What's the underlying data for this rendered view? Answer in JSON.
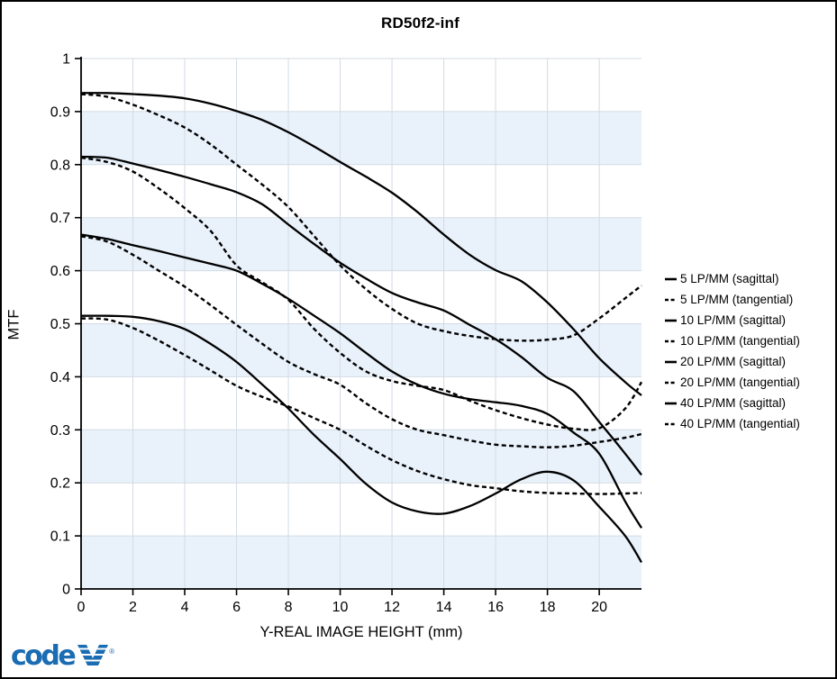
{
  "chart_data": {
    "type": "line",
    "title": "RD50f2-inf",
    "xlabel": "Y-REAL IMAGE HEIGHT (mm)",
    "ylabel": "MTF",
    "xlim": [
      0,
      21.63
    ],
    "ylim": [
      0,
      1
    ],
    "x_ticks": [
      0,
      2,
      4,
      6,
      8,
      10,
      12,
      14,
      16,
      18,
      20
    ],
    "y_ticks": [
      0,
      0.1,
      0.2,
      0.3,
      0.4,
      0.5,
      0.6,
      0.7,
      0.8,
      0.9,
      1
    ],
    "y_tick_labels": [
      "0",
      "0.1",
      "0.2",
      "0.3",
      "0.4",
      "0.5",
      "0.6",
      "0.7",
      "0.8",
      "0.9",
      "1"
    ],
    "grid": true,
    "legend_position": "right",
    "band_color": "#e9f1fb",
    "grid_color": "#d3dbe4",
    "line_color": "#000000",
    "x": [
      0,
      1,
      2,
      3,
      4,
      5,
      6,
      7,
      8,
      9,
      10,
      11,
      12,
      13,
      14,
      15,
      16,
      17,
      18,
      19,
      20,
      21,
      21.63
    ],
    "series": [
      {
        "name": "5 LP/MM (sagittal)",
        "line": "solid",
        "values": [
          0.935,
          0.935,
          0.933,
          0.93,
          0.925,
          0.915,
          0.901,
          0.884,
          0.861,
          0.834,
          0.805,
          0.777,
          0.747,
          0.71,
          0.668,
          0.63,
          0.601,
          0.58,
          0.54,
          0.49,
          0.435,
          0.39,
          0.365
        ]
      },
      {
        "name": "5 LP/MM (tangential)",
        "line": "dashed",
        "values": [
          0.933,
          0.928,
          0.913,
          0.893,
          0.87,
          0.838,
          0.8,
          0.762,
          0.72,
          0.665,
          0.61,
          0.565,
          0.528,
          0.5,
          0.486,
          0.477,
          0.471,
          0.468,
          0.47,
          0.478,
          0.51,
          0.548,
          0.572
        ]
      },
      {
        "name": "10 LP/MM (sagittal)",
        "line": "solid",
        "values": [
          0.815,
          0.813,
          0.802,
          0.79,
          0.777,
          0.763,
          0.748,
          0.725,
          0.687,
          0.65,
          0.615,
          0.585,
          0.558,
          0.54,
          0.525,
          0.498,
          0.471,
          0.437,
          0.398,
          0.373,
          0.315,
          0.255,
          0.215
        ]
      },
      {
        "name": "10 LP/MM (tangential)",
        "line": "dashed",
        "values": [
          0.813,
          0.805,
          0.787,
          0.755,
          0.718,
          0.675,
          0.61,
          0.578,
          0.545,
          0.49,
          0.445,
          0.41,
          0.392,
          0.383,
          0.375,
          0.355,
          0.337,
          0.322,
          0.31,
          0.302,
          0.303,
          0.34,
          0.39
        ]
      },
      {
        "name": "20 LP/MM (sagittal)",
        "line": "solid",
        "values": [
          0.668,
          0.66,
          0.648,
          0.637,
          0.625,
          0.613,
          0.6,
          0.575,
          0.547,
          0.515,
          0.482,
          0.445,
          0.41,
          0.385,
          0.368,
          0.358,
          0.352,
          0.345,
          0.33,
          0.295,
          0.255,
          0.165,
          0.115
        ]
      },
      {
        "name": "20 LP/MM (tangential)",
        "line": "dashed",
        "values": [
          0.665,
          0.655,
          0.63,
          0.6,
          0.57,
          0.535,
          0.498,
          0.462,
          0.428,
          0.405,
          0.385,
          0.35,
          0.32,
          0.3,
          0.29,
          0.28,
          0.272,
          0.269,
          0.267,
          0.27,
          0.277,
          0.285,
          0.292
        ]
      },
      {
        "name": "40 LP/MM (sagittal)",
        "line": "solid",
        "values": [
          0.515,
          0.515,
          0.513,
          0.505,
          0.49,
          0.462,
          0.428,
          0.385,
          0.34,
          0.29,
          0.245,
          0.198,
          0.163,
          0.146,
          0.142,
          0.156,
          0.18,
          0.207,
          0.221,
          0.205,
          0.155,
          0.1,
          0.05
        ]
      },
      {
        "name": "40 LP/MM (tangential)",
        "line": "dashed",
        "values": [
          0.51,
          0.508,
          0.492,
          0.468,
          0.441,
          0.412,
          0.383,
          0.362,
          0.344,
          0.322,
          0.3,
          0.27,
          0.243,
          0.222,
          0.207,
          0.196,
          0.19,
          0.184,
          0.181,
          0.18,
          0.179,
          0.18,
          0.181
        ]
      }
    ]
  },
  "logo": {
    "word": "code",
    "mark": "V",
    "registered": "®",
    "color": "#1a6cb3"
  }
}
